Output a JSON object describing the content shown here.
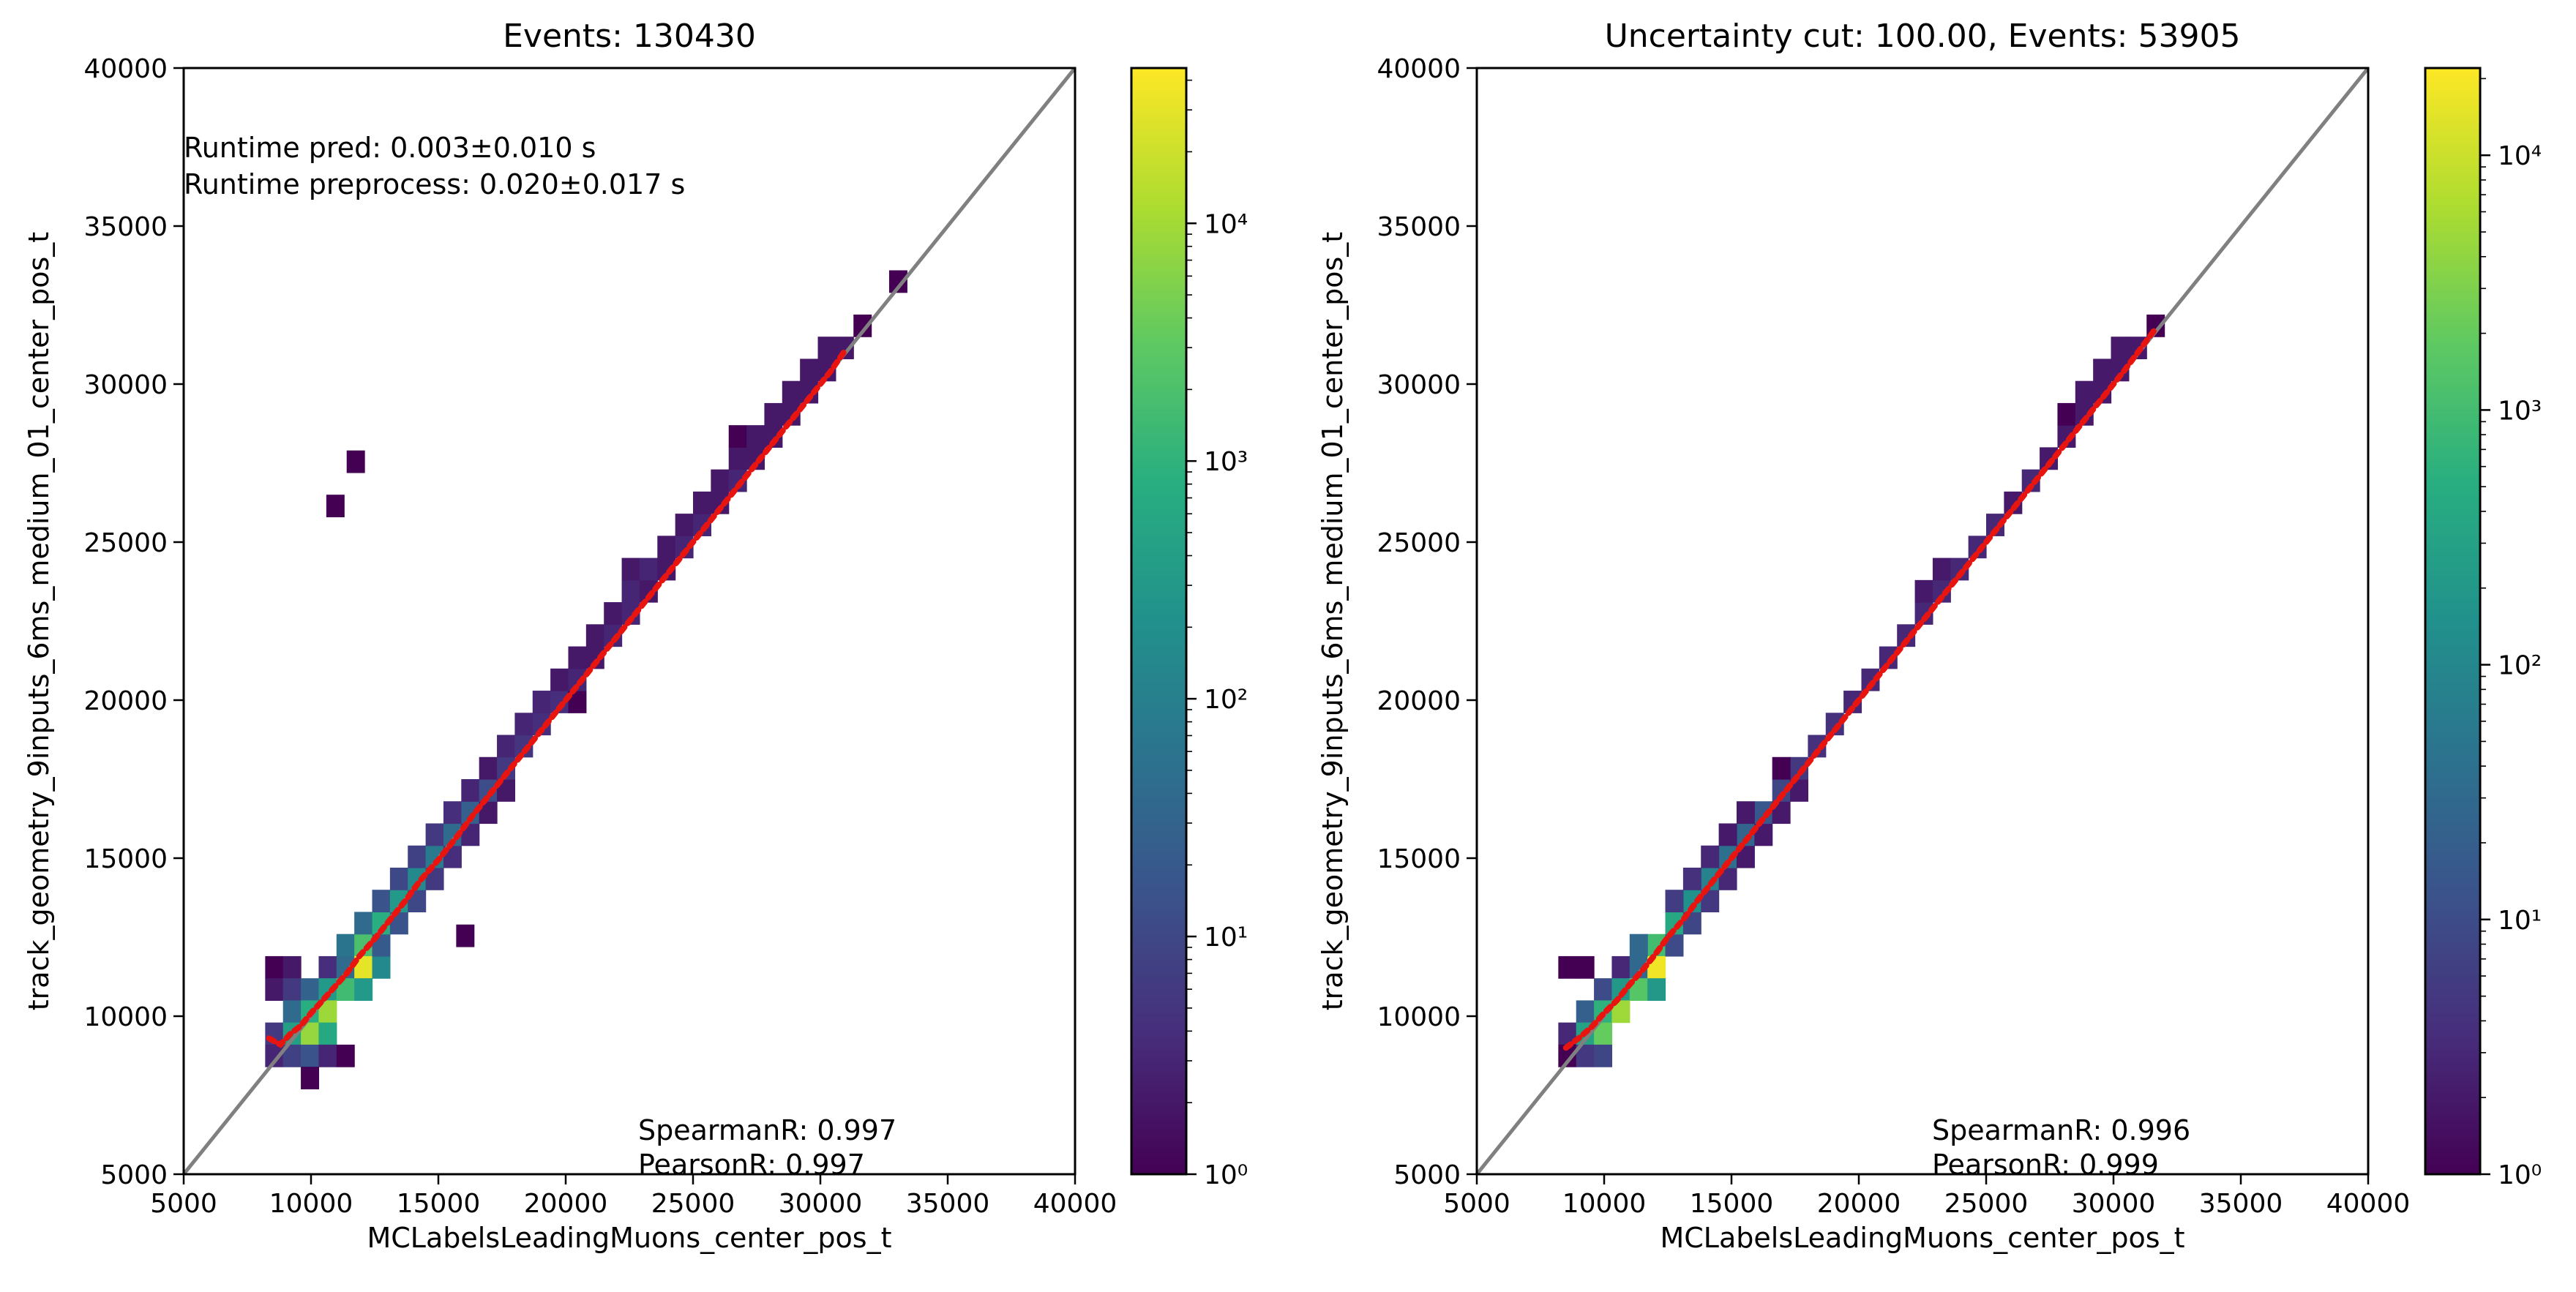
{
  "chart_data": [
    {
      "type": "heatmap",
      "title": "Events: 130430",
      "xlabel": "MCLabelsLeadingMuons_center_pos_t",
      "ylabel": "track_geometry_9inputs_6ms_medium_01_center_pos_t",
      "xlim": [
        5000,
        40000
      ],
      "ylim": [
        5000,
        40000
      ],
      "x_ticks": [
        "5000",
        "10000",
        "15000",
        "20000",
        "25000",
        "30000",
        "35000",
        "40000"
      ],
      "y_ticks": [
        "5000",
        "10000",
        "15000",
        "20000",
        "25000",
        "30000",
        "35000",
        "40000"
      ],
      "colorbar": {
        "scale": "log",
        "min": 1,
        "max": 45000,
        "ticks": [
          1,
          10,
          100,
          1000,
          10000
        ]
      },
      "annotations": {
        "runtime_pred": "Runtime pred: 0.003±0.010 s",
        "runtime_preprocess": "Runtime preprocess: 0.020±0.017 s",
        "spearman": "SpearmanR: 0.997",
        "pearson": "PearsonR: 0.997"
      },
      "bin_width": 700,
      "bins": [
        [
          8550,
          11550,
          1
        ],
        [
          9250,
          11550,
          2
        ],
        [
          10650,
          11550,
          4
        ],
        [
          11350,
          11550,
          40
        ],
        [
          8550,
          10850,
          2
        ],
        [
          9250,
          10850,
          6
        ],
        [
          9950,
          10850,
          30
        ],
        [
          10650,
          10850,
          300
        ],
        [
          11350,
          10850,
          1500
        ],
        [
          9250,
          10150,
          40
        ],
        [
          9950,
          10150,
          800
        ],
        [
          10650,
          10150,
          9000
        ],
        [
          8550,
          9450,
          6
        ],
        [
          9250,
          9450,
          400
        ],
        [
          9950,
          9450,
          8000
        ],
        [
          10650,
          9450,
          600
        ],
        [
          8550,
          8750,
          3
        ],
        [
          9250,
          8750,
          8
        ],
        [
          9950,
          8750,
          15
        ],
        [
          10650,
          8750,
          3
        ],
        [
          11350,
          8750,
          1
        ],
        [
          9950,
          8050,
          1
        ],
        [
          11350,
          12250,
          60
        ],
        [
          12050,
          12250,
          2000
        ],
        [
          12050,
          11550,
          30000
        ],
        [
          12050,
          10850,
          300
        ],
        [
          12750,
          11550,
          150
        ],
        [
          12750,
          12250,
          20
        ],
        [
          12050,
          12950,
          40
        ],
        [
          12750,
          12950,
          800
        ],
        [
          13450,
          12950,
          15
        ],
        [
          12750,
          13650,
          15
        ],
        [
          13450,
          13650,
          300
        ],
        [
          14150,
          13650,
          10
        ],
        [
          13450,
          14350,
          10
        ],
        [
          14150,
          14350,
          150
        ],
        [
          14850,
          14350,
          6
        ],
        [
          14150,
          15050,
          8
        ],
        [
          14850,
          15050,
          80
        ],
        [
          15550,
          15050,
          4
        ],
        [
          14850,
          15750,
          6
        ],
        [
          15550,
          15750,
          40
        ],
        [
          16250,
          15750,
          3
        ],
        [
          15550,
          16450,
          4
        ],
        [
          16250,
          16450,
          25
        ],
        [
          16950,
          16450,
          2
        ],
        [
          16250,
          17150,
          3
        ],
        [
          16950,
          17150,
          12
        ],
        [
          17650,
          17150,
          2
        ],
        [
          16950,
          17850,
          2
        ],
        [
          17650,
          17850,
          6
        ],
        [
          17650,
          18550,
          3
        ],
        [
          18350,
          18550,
          5
        ],
        [
          18350,
          19250,
          3
        ],
        [
          19050,
          19250,
          4
        ],
        [
          19050,
          19950,
          3
        ],
        [
          19750,
          19950,
          4
        ],
        [
          20450,
          19950,
          1
        ],
        [
          19750,
          20650,
          2
        ],
        [
          20450,
          20650,
          3
        ],
        [
          20450,
          21350,
          2
        ],
        [
          21150,
          21350,
          2
        ],
        [
          21150,
          22050,
          2
        ],
        [
          21850,
          22050,
          3
        ],
        [
          21850,
          22750,
          2
        ],
        [
          22550,
          22750,
          3
        ],
        [
          22550,
          23450,
          3
        ],
        [
          23250,
          23450,
          2
        ],
        [
          22550,
          24150,
          2
        ],
        [
          23250,
          24150,
          3
        ],
        [
          23950,
          24150,
          2
        ],
        [
          23950,
          24850,
          2
        ],
        [
          24650,
          24850,
          3
        ],
        [
          24650,
          25550,
          2
        ],
        [
          25350,
          25550,
          3
        ],
        [
          25350,
          26250,
          2
        ],
        [
          26050,
          26250,
          2
        ],
        [
          26050,
          26950,
          2
        ],
        [
          26750,
          26950,
          3
        ],
        [
          26750,
          27650,
          2
        ],
        [
          27450,
          27650,
          2
        ],
        [
          26750,
          28350,
          1
        ],
        [
          27450,
          28350,
          2
        ],
        [
          28150,
          28350,
          2
        ],
        [
          28150,
          29050,
          2
        ],
        [
          28850,
          29050,
          2
        ],
        [
          28850,
          29750,
          2
        ],
        [
          29550,
          29750,
          2
        ],
        [
          29550,
          30450,
          2
        ],
        [
          30250,
          30450,
          2
        ],
        [
          30250,
          31150,
          2
        ],
        [
          30950,
          31150,
          2
        ],
        [
          31650,
          31850,
          1
        ],
        [
          33050,
          33250,
          1
        ],
        [
          16050,
          12550,
          1
        ],
        [
          10950,
          26150,
          1
        ],
        [
          11750,
          27550,
          1
        ]
      ],
      "profile": [
        [
          8350,
          9300
        ],
        [
          8800,
          9100
        ],
        [
          9200,
          9450
        ],
        [
          9600,
          9700
        ],
        [
          10000,
          10100
        ],
        [
          10400,
          10450
        ],
        [
          10900,
          10900
        ],
        [
          11400,
          11350
        ],
        [
          11900,
          11900
        ],
        [
          12500,
          12450
        ],
        [
          13100,
          13050
        ],
        [
          13700,
          13650
        ],
        [
          14300,
          14300
        ],
        [
          15000,
          14950
        ],
        [
          15700,
          15650
        ],
        [
          16400,
          16400
        ],
        [
          17100,
          17100
        ],
        [
          17800,
          17800
        ],
        [
          18500,
          18500
        ],
        [
          19200,
          19200
        ],
        [
          19900,
          19900
        ],
        [
          20600,
          20600
        ],
        [
          21300,
          21300
        ],
        [
          22000,
          22000
        ],
        [
          22700,
          22700
        ],
        [
          23400,
          23400
        ],
        [
          24100,
          24100
        ],
        [
          24800,
          24800
        ],
        [
          25500,
          25500
        ],
        [
          26200,
          26200
        ],
        [
          26900,
          26900
        ],
        [
          27600,
          27600
        ],
        [
          28300,
          28300
        ],
        [
          29000,
          29000
        ],
        [
          29700,
          29700
        ],
        [
          30400,
          30400
        ],
        [
          31000,
          31100
        ]
      ]
    },
    {
      "type": "heatmap",
      "title": "Uncertainty cut: 100.00, Events: 53905",
      "xlabel": "MCLabelsLeadingMuons_center_pos_t",
      "ylabel": "track_geometry_9inputs_6ms_medium_01_center_pos_t",
      "xlim": [
        5000,
        40000
      ],
      "ylim": [
        5000,
        40000
      ],
      "x_ticks": [
        "5000",
        "10000",
        "15000",
        "20000",
        "25000",
        "30000",
        "35000",
        "40000"
      ],
      "y_ticks": [
        "5000",
        "10000",
        "15000",
        "20000",
        "25000",
        "30000",
        "35000",
        "40000"
      ],
      "colorbar": {
        "scale": "log",
        "min": 1,
        "max": 22000,
        "ticks": [
          1,
          10,
          100,
          1000,
          10000
        ]
      },
      "annotations": {
        "spearman": "SpearmanR: 0.996",
        "pearson": "PearsonR: 0.999"
      },
      "bin_width": 700,
      "bins": [
        [
          8550,
          11550,
          1
        ],
        [
          9250,
          11550,
          1
        ],
        [
          10650,
          11550,
          3
        ],
        [
          11350,
          11550,
          30
        ],
        [
          9950,
          10850,
          10
        ],
        [
          10650,
          10850,
          200
        ],
        [
          11350,
          10850,
          1500
        ],
        [
          9250,
          10150,
          20
        ],
        [
          9950,
          10150,
          600
        ],
        [
          10650,
          10150,
          5000
        ],
        [
          8550,
          9450,
          3
        ],
        [
          9250,
          9450,
          300
        ],
        [
          9950,
          9450,
          2000
        ],
        [
          8550,
          8750,
          1
        ],
        [
          9250,
          8750,
          5
        ],
        [
          9950,
          8750,
          8
        ],
        [
          12050,
          12250,
          1000
        ],
        [
          12050,
          11550,
          18000
        ],
        [
          12050,
          10850,
          200
        ],
        [
          11350,
          12250,
          30
        ],
        [
          12750,
          12250,
          10
        ],
        [
          12750,
          12950,
          400
        ],
        [
          13450,
          12950,
          8
        ],
        [
          13450,
          13650,
          150
        ],
        [
          12750,
          13650,
          6
        ],
        [
          14150,
          13650,
          5
        ],
        [
          14150,
          14350,
          80
        ],
        [
          13450,
          14350,
          4
        ],
        [
          14850,
          14350,
          3
        ],
        [
          14850,
          15050,
          40
        ],
        [
          14150,
          15050,
          3
        ],
        [
          15550,
          15050,
          2
        ],
        [
          15550,
          15750,
          25
        ],
        [
          14850,
          15750,
          2
        ],
        [
          16250,
          15750,
          2
        ],
        [
          16250,
          16450,
          15
        ],
        [
          15550,
          16450,
          2
        ],
        [
          16950,
          16450,
          2
        ],
        [
          16950,
          17150,
          8
        ],
        [
          17650,
          17150,
          2
        ],
        [
          17650,
          17850,
          5
        ],
        [
          16950,
          17850,
          1
        ],
        [
          18350,
          18550,
          4
        ],
        [
          19050,
          19250,
          4
        ],
        [
          19750,
          19950,
          3
        ],
        [
          20450,
          20650,
          3
        ],
        [
          21150,
          21350,
          3
        ],
        [
          21850,
          22050,
          3
        ],
        [
          22550,
          22750,
          3
        ],
        [
          22550,
          23450,
          2
        ],
        [
          23250,
          23450,
          3
        ],
        [
          23250,
          24150,
          2
        ],
        [
          23950,
          24150,
          3
        ],
        [
          24650,
          24850,
          3
        ],
        [
          25350,
          25550,
          3
        ],
        [
          26050,
          26250,
          2
        ],
        [
          26750,
          26950,
          3
        ],
        [
          27450,
          27650,
          2
        ],
        [
          28150,
          28350,
          2
        ],
        [
          28150,
          29050,
          1
        ],
        [
          28850,
          29050,
          2
        ],
        [
          28850,
          29750,
          2
        ],
        [
          29550,
          29750,
          2
        ],
        [
          29550,
          30450,
          2
        ],
        [
          30250,
          30450,
          2
        ],
        [
          30250,
          31150,
          2
        ],
        [
          30950,
          31150,
          2
        ],
        [
          31650,
          31850,
          1
        ]
      ],
      "profile": [
        [
          8500,
          9000
        ],
        [
          9000,
          9300
        ],
        [
          9500,
          9650
        ],
        [
          10000,
          10100
        ],
        [
          10500,
          10500
        ],
        [
          11000,
          11000
        ],
        [
          11500,
          11450
        ],
        [
          12000,
          11950
        ],
        [
          12500,
          12500
        ],
        [
          13100,
          13050
        ],
        [
          13700,
          13700
        ],
        [
          14300,
          14300
        ],
        [
          15000,
          15000
        ],
        [
          15700,
          15700
        ],
        [
          16400,
          16400
        ],
        [
          17100,
          17100
        ],
        [
          17800,
          17800
        ],
        [
          18500,
          18500
        ],
        [
          19200,
          19200
        ],
        [
          19900,
          19900
        ],
        [
          20600,
          20600
        ],
        [
          21300,
          21300
        ],
        [
          22000,
          22000
        ],
        [
          22700,
          22700
        ],
        [
          23400,
          23400
        ],
        [
          24100,
          24100
        ],
        [
          24800,
          24800
        ],
        [
          25500,
          25500
        ],
        [
          26200,
          26200
        ],
        [
          26900,
          26900
        ],
        [
          27600,
          27600
        ],
        [
          28300,
          28300
        ],
        [
          29000,
          29000
        ],
        [
          29700,
          29700
        ],
        [
          30400,
          30400
        ],
        [
          31000,
          31050
        ],
        [
          31600,
          31700
        ]
      ]
    }
  ]
}
